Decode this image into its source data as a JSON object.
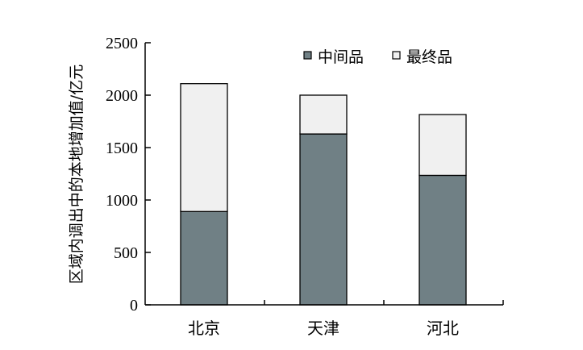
{
  "chart_data": {
    "type": "bar",
    "stacked": true,
    "categories": [
      "北京",
      "天津",
      "河北"
    ],
    "series": [
      {
        "name": "中间品",
        "values": [
          890,
          1630,
          1235
        ],
        "color": "#708085"
      },
      {
        "name": "最终品",
        "values": [
          1220,
          370,
          580
        ],
        "color": "#f0f0f0"
      }
    ],
    "ylabel": "区域内调出中的本地增加值/亿元",
    "ylim": [
      0,
      2500
    ],
    "yticks": [
      0,
      500,
      1000,
      1500,
      2000,
      2500
    ],
    "legend_position": "top-right",
    "grid": false
  }
}
